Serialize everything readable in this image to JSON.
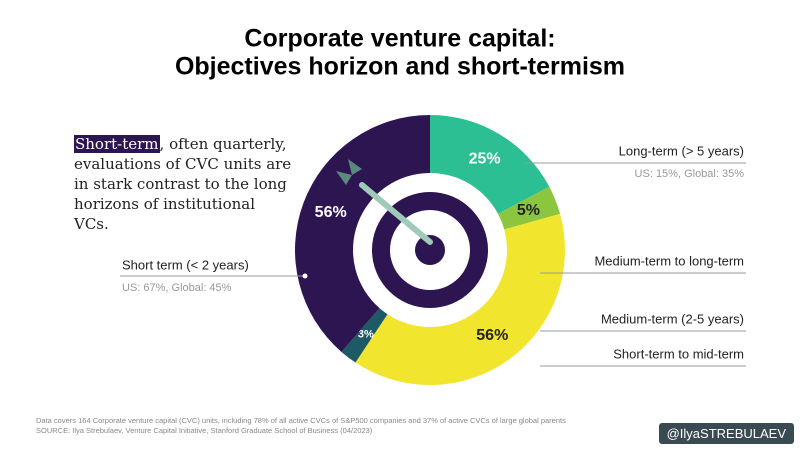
{
  "chart_data": {
    "type": "pie",
    "title": [
      "Corporate venture capital:",
      "Objectives horizon and short-termism"
    ],
    "categories": [
      "Long-term (> 5 years)",
      "Medium-term to long-term",
      "Medium-term (2-5 years)",
      "Short-term to mid-term",
      "Short term (< 2 years)"
    ],
    "values": [
      25,
      5,
      56,
      3,
      56
    ],
    "value_labels": [
      "25%",
      "5%",
      "56%",
      "3%",
      "56%"
    ],
    "colors": [
      "#2bbf93",
      "#8cc63f",
      "#f2e52e",
      "#1e5a66",
      "#2c1551"
    ],
    "annotations": {
      "long_term": "US: 15%, Global: 35%",
      "short_term": "US: 67%, Global: 45%"
    },
    "paragraph": {
      "highlight": "Short-term",
      "text": ", often quarterly, evaluations of CVC units are in stark contrast to the long horizons of institutional VCs."
    },
    "footnote": "Data covers 164 Corporate venture capital (CVC) units, including 78% of all active CVCs of S&P500 companies and 37% of active CVCs of large global parents",
    "source": "SOURCE: Ilya Strebulaev, Venture Capital Initiative, Stanford Graduate School of Business (04/2023)",
    "handle": "@IlyaSTREBULAEV"
  }
}
